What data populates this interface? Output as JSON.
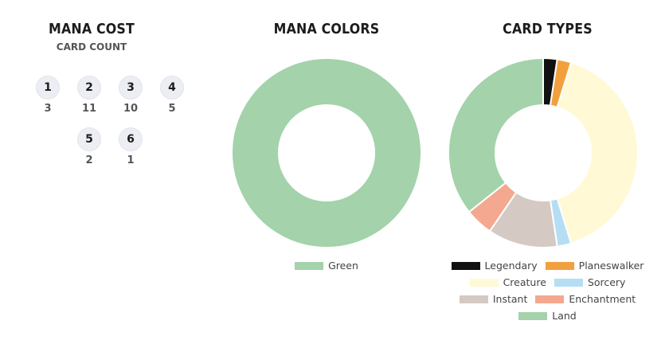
{
  "mana_cost": {
    "title": "MANA COST",
    "subtitle": "CARD COUNT"
  },
  "mana_colors": {
    "title": "MANA COLORS"
  },
  "card_types": {
    "title": "CARD TYPES"
  },
  "chart_data": [
    {
      "type": "table",
      "title": "MANA COST",
      "subtitle": "CARD COUNT",
      "categories": [
        "1",
        "2",
        "3",
        "4",
        "5",
        "6"
      ],
      "values": [
        3,
        11,
        10,
        5,
        2,
        1
      ]
    },
    {
      "type": "pie",
      "title": "MANA COLORS",
      "categories": [
        "Green"
      ],
      "values": [
        1
      ],
      "colors": [
        "#a3d2ab"
      ],
      "legend_position": "bottom"
    },
    {
      "type": "pie",
      "title": "CARD TYPES",
      "categories": [
        "Legendary",
        "Planeswalker",
        "Creature",
        "Sorcery",
        "Instant",
        "Enchantment",
        "Land"
      ],
      "values": [
        1,
        1,
        17,
        1,
        5,
        2,
        15
      ],
      "colors": [
        "#111111",
        "#f2a03d",
        "#fff9d6",
        "#b5def4",
        "#d4c9c3",
        "#f4a88f",
        "#a3d2ab"
      ],
      "legend_position": "bottom"
    }
  ]
}
